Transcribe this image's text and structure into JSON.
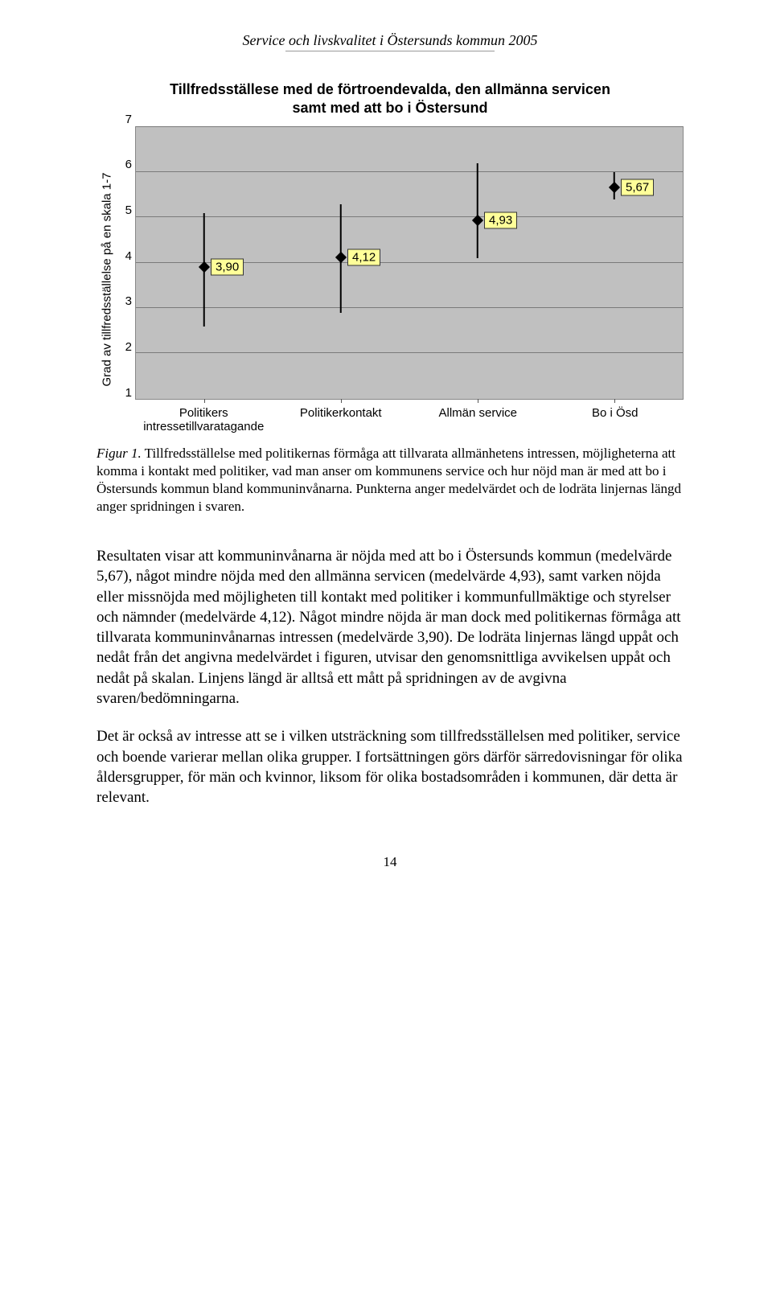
{
  "doc_header": "Service och livskvalitet i Östersunds kommun 2005",
  "chart": {
    "type": "scatter-error",
    "title_line1": "Tillfredsställese med de förtroendevalda, den allmänna servicen",
    "title_line2": "samt med att bo i Östersund",
    "y_label": "Grad av tillfredsställelse på en skala 1-7",
    "ylim": [
      1,
      7
    ],
    "yticks": [
      "1",
      "2",
      "3",
      "4",
      "5",
      "6",
      "7"
    ],
    "background_color": "#c0c0c0",
    "grid_color": "#7a7a7a",
    "marker_color": "#000000",
    "whisker_color": "#000000",
    "label_bg_color": "#ffff99",
    "categories": [
      "Politikers intressetillvaratagande",
      "Politikerkontakt",
      "Allmän service",
      "Bo i Ösd"
    ],
    "points": [
      {
        "value": 3.9,
        "label": "3,90",
        "low": 2.6,
        "high": 5.1
      },
      {
        "value": 4.12,
        "label": "4,12",
        "low": 2.9,
        "high": 5.3
      },
      {
        "value": 4.93,
        "label": "4,93",
        "low": 4.1,
        "high": 6.2
      },
      {
        "value": 5.67,
        "label": "5,67",
        "low": 5.4,
        "high": 6.0
      }
    ]
  },
  "figure_caption": {
    "label": "Figur 1.",
    "text": " Tillfredsställelse med politikernas förmåga att tillvarata allmänhetens intressen, möjligheterna att komma i kontakt med politiker, vad man anser om kommunens service och hur nöjd man är med att bo i Östersunds kommun bland kommuninvånarna. Punkterna anger medelvärdet och de lodräta linjernas längd anger spridningen i svaren."
  },
  "para1": "Resultaten visar att kommuninvånarna är nöjda med att bo i Östersunds kommun (medelvärde 5,67), något mindre nöjda med den allmänna servicen (medelvärde 4,93), samt varken nöjda eller missnöjda med möjligheten till kontakt med politiker i kommunfullmäktige och styrelser och nämnder  (medelvärde 4,12). Något mindre nöjda är man dock med politikernas förmåga att tillvarata kommuninvånarnas intressen (medelvärde 3,90). De lodräta linjernas längd uppåt och nedåt från det angivna medelvärdet i figuren, utvisar den genomsnittliga avvikelsen uppåt och nedåt på skalan. Linjens längd är alltså ett mått på spridningen av de avgivna svaren/bedömningarna.",
  "para2": "Det är också av intresse att se i vilken utsträckning som tillfredsställelsen med politiker, service och boende varierar mellan olika grupper. I fortsättningen görs därför särredovisningar för olika åldersgrupper, för män och kvinnor, liksom för olika bostadsområden i kommunen, där detta är relevant.",
  "page_number": "14"
}
